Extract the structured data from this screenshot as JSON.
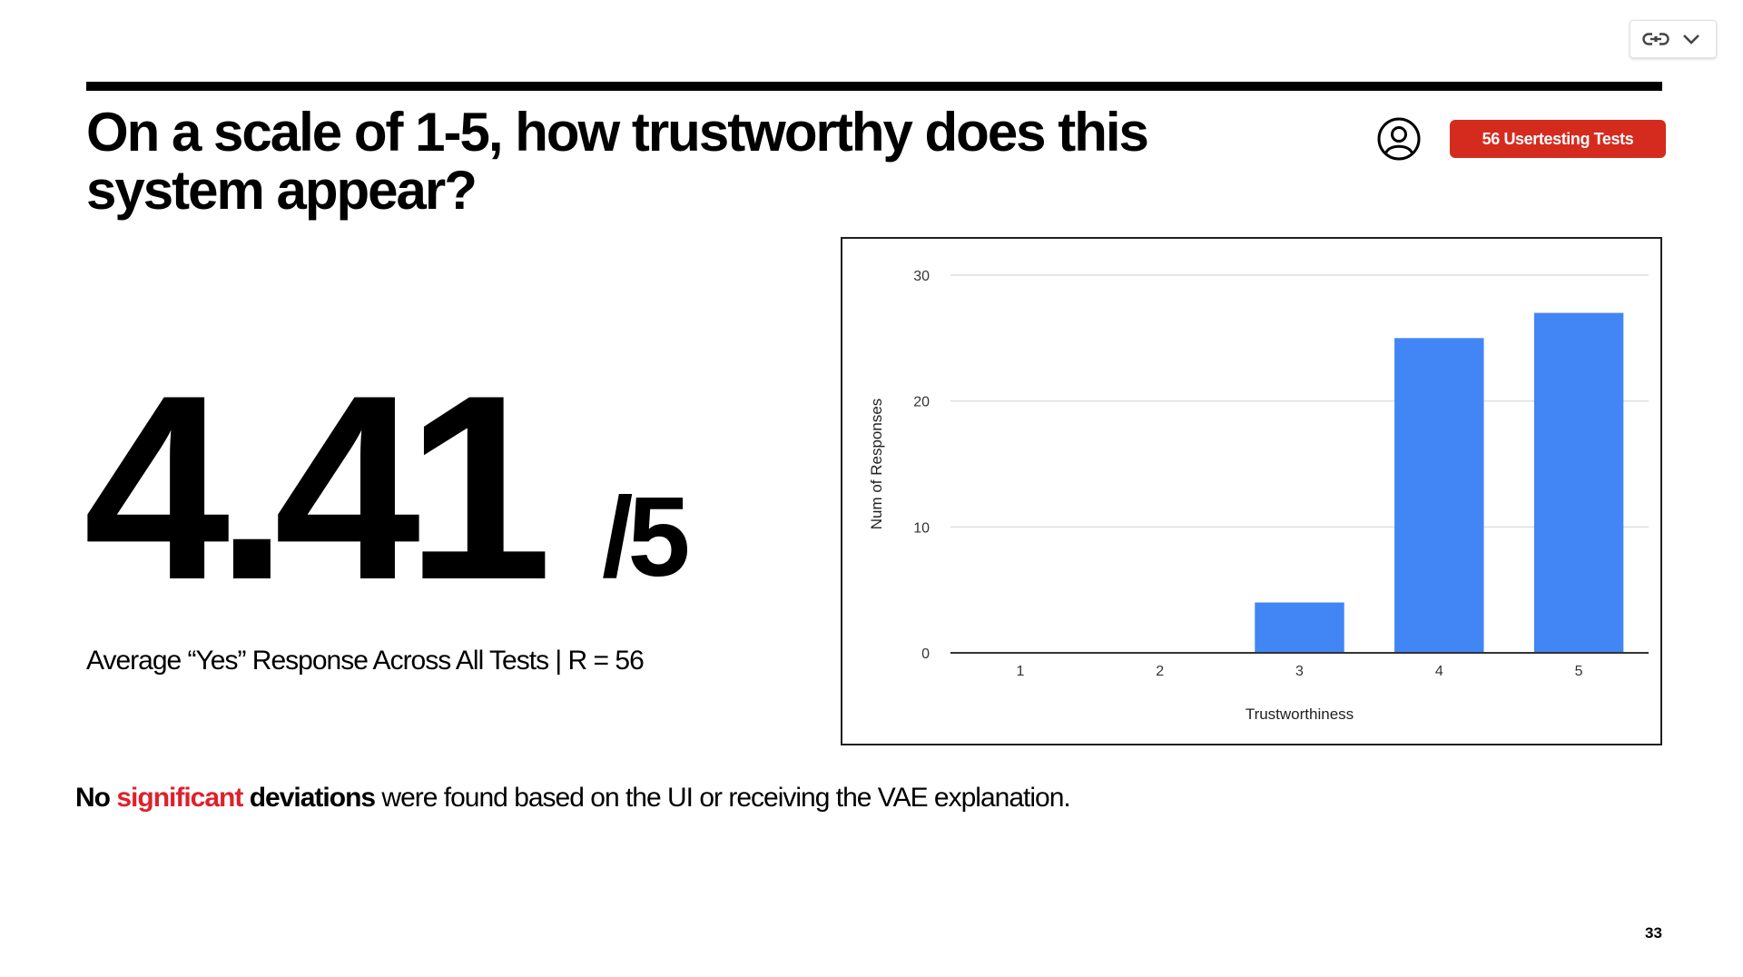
{
  "toolbar": {
    "icons": [
      "link-icon",
      "chevron-down-icon"
    ]
  },
  "slide": {
    "title": "On a scale of 1-5, how trustworthy does this system appear?",
    "badge": "56 Usertesting Tests",
    "score": "4.41",
    "score_denominator": "/5",
    "score_caption": "Average “Yes” Response Across All Tests | R = 56",
    "note": {
      "part1": "No",
      "part2": "significant",
      "part3": "deviations",
      "part4": "were found based on the UI or receiving the VAE explanation."
    },
    "page_number": "33",
    "colors": {
      "accent_red": "#d52b1e",
      "bar_blue": "#4285f4"
    }
  },
  "chart_data": {
    "type": "bar",
    "categories": [
      "1",
      "2",
      "3",
      "4",
      "5"
    ],
    "values": [
      0,
      0,
      4,
      25,
      27
    ],
    "xlabel": "Trustworthiness",
    "ylabel": "Num of Responses",
    "ylim": [
      0,
      30
    ],
    "yticks": [
      0,
      10,
      20,
      30
    ],
    "grid": true,
    "legend": "none",
    "color": "#4285f4"
  }
}
